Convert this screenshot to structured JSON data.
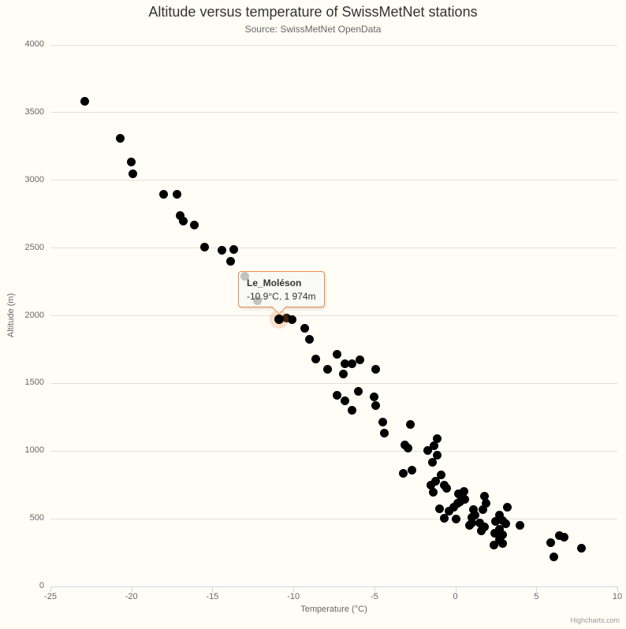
{
  "chart": {
    "title": "Altitude versus temperature of SwissMetNet stations",
    "subtitle": "Source: SwissMetNet OpenData",
    "credits": "Highcharts.com"
  },
  "tooltip": {
    "station": "Le_Moléson",
    "value": "-10.9°C, 1 974m"
  },
  "colors": {
    "marker": "#000000",
    "tooltip_border": "#ef8c42",
    "grid_line": "#e0e0dd",
    "axis_line": "#ccd6eb",
    "hover_halo": "rgba(240,140,70,0.25)",
    "background": "#fffdf6"
  },
  "chart_data": {
    "type": "scatter",
    "title": "Altitude versus temperature of SwissMetNet stations",
    "subtitle": "Source: SwissMetNet OpenData",
    "xlabel": "Temperature (°C)",
    "ylabel": "Altitude (m)",
    "xlim": [
      -25,
      10
    ],
    "ylim": [
      0,
      4000
    ],
    "x_ticks": [
      -25,
      -20,
      -15,
      -10,
      -5,
      0,
      5,
      10
    ],
    "y_ticks": [
      0,
      500,
      1000,
      1500,
      2000,
      2500,
      3000,
      3500,
      4000
    ],
    "grid": true,
    "legend": false,
    "marker": "circle",
    "highlight_point": {
      "name": "Le_Moléson",
      "x": -10.9,
      "y": 1974
    },
    "points": [
      [
        -22.9,
        3585
      ],
      [
        -20.7,
        3309
      ],
      [
        -20.0,
        3134
      ],
      [
        -19.9,
        3047
      ],
      [
        -18.0,
        2899
      ],
      [
        -17.2,
        2895
      ],
      [
        -17.0,
        2740
      ],
      [
        -16.8,
        2697
      ],
      [
        -16.1,
        2668
      ],
      [
        -15.5,
        2508
      ],
      [
        -14.4,
        2482
      ],
      [
        -13.7,
        2488
      ],
      [
        -13.9,
        2401
      ],
      [
        -13.0,
        2290
      ],
      [
        -12.2,
        2110
      ],
      [
        -10.4,
        1984
      ],
      [
        -10.1,
        1968
      ],
      [
        -9.3,
        1906
      ],
      [
        -9.0,
        1828
      ],
      [
        -8.6,
        1677
      ],
      [
        -7.9,
        1605
      ],
      [
        -7.3,
        1712
      ],
      [
        -6.8,
        1644
      ],
      [
        -6.4,
        1644
      ],
      [
        -6.9,
        1572
      ],
      [
        -5.9,
        1673
      ],
      [
        -4.9,
        1605
      ],
      [
        -7.3,
        1411
      ],
      [
        -6.8,
        1372
      ],
      [
        -6.4,
        1304
      ],
      [
        -6.0,
        1440
      ],
      [
        -5.0,
        1401
      ],
      [
        -4.9,
        1337
      ],
      [
        -4.5,
        1215
      ],
      [
        -4.4,
        1133
      ],
      [
        -2.8,
        1195
      ],
      [
        -3.1,
        1045
      ],
      [
        -2.9,
        1020
      ],
      [
        -1.7,
        1003
      ],
      [
        -1.3,
        1042
      ],
      [
        -1.1,
        1090
      ],
      [
        -1.1,
        970
      ],
      [
        -1.4,
        916
      ],
      [
        -3.2,
        833
      ],
      [
        -2.7,
        858
      ],
      [
        -1.2,
        775
      ],
      [
        -0.9,
        825
      ],
      [
        -1.5,
        751
      ],
      [
        -0.7,
        751
      ],
      [
        -0.55,
        725
      ],
      [
        -1.35,
        693
      ],
      [
        -1.0,
        576
      ],
      [
        -0.7,
        505
      ],
      [
        -0.4,
        557
      ],
      [
        -0.1,
        586
      ],
      [
        0.15,
        615
      ],
      [
        0.05,
        499
      ],
      [
        0.2,
        683
      ],
      [
        0.55,
        703
      ],
      [
        0.3,
        625
      ],
      [
        0.6,
        644
      ],
      [
        1.8,
        664
      ],
      [
        1.9,
        615
      ],
      [
        1.7,
        566
      ],
      [
        1.1,
        566
      ],
      [
        1.2,
        528
      ],
      [
        1.0,
        508
      ],
      [
        1.0,
        470
      ],
      [
        0.85,
        450
      ],
      [
        1.5,
        470
      ],
      [
        1.8,
        441
      ],
      [
        1.6,
        412
      ],
      [
        3.2,
        586
      ],
      [
        2.7,
        528
      ],
      [
        2.5,
        479
      ],
      [
        2.9,
        489
      ],
      [
        3.1,
        460
      ],
      [
        2.7,
        421
      ],
      [
        2.45,
        392
      ],
      [
        2.9,
        382
      ],
      [
        2.7,
        344
      ],
      [
        2.9,
        315
      ],
      [
        2.4,
        305
      ],
      [
        4.0,
        450
      ],
      [
        5.9,
        324
      ],
      [
        6.4,
        373
      ],
      [
        6.7,
        366
      ],
      [
        6.1,
        217
      ],
      [
        7.8,
        281
      ]
    ]
  }
}
